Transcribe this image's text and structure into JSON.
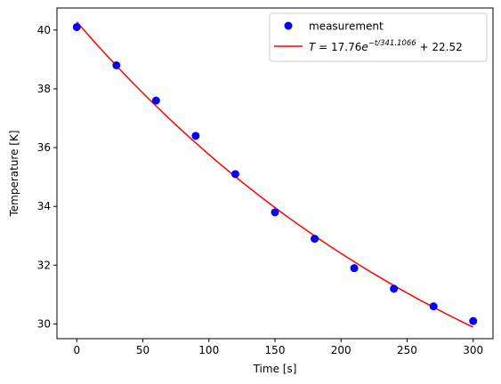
{
  "chart_data": {
    "type": "scatter",
    "xlabel": "Time [s]",
    "ylabel": "Temperature [K]",
    "xlim": [
      -15,
      315
    ],
    "ylim": [
      29.5,
      40.75
    ],
    "x_ticks": [
      0,
      50,
      100,
      150,
      200,
      250,
      300
    ],
    "y_ticks": [
      30,
      32,
      34,
      36,
      38,
      40
    ],
    "grid": false,
    "legend_position": "top-right",
    "series": [
      {
        "name": "measurement",
        "kind": "points",
        "color": "#0000ff",
        "x": [
          0,
          30,
          60,
          90,
          120,
          150,
          180,
          210,
          240,
          270,
          300
        ],
        "y": [
          40.1,
          38.8,
          37.6,
          36.4,
          35.1,
          33.8,
          32.9,
          31.9,
          31.2,
          30.6,
          30.1
        ]
      },
      {
        "name": "T = 17.76e^{-t/341.1066} + 22.52",
        "kind": "fit",
        "color": "#ff0000",
        "fit": {
          "A": 17.76,
          "tau": 341.1066,
          "C": 22.52
        }
      }
    ],
    "legend": {
      "measurement": "measurement",
      "fit_prefix": "T",
      "fit_eq": " = 17.76",
      "fit_base": "e",
      "fit_exp": "−t/341.1066",
      "fit_tail": " + 22.52"
    }
  }
}
